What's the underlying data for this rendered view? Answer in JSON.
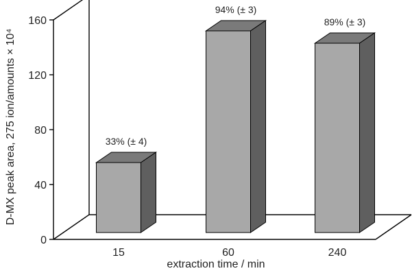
{
  "chart_data": {
    "type": "bar",
    "title": "",
    "xlabel": "extraction time / min",
    "ylabel": "D-MX peak area, 275 ion/amounts × 10⁴",
    "ylim": [
      0,
      160
    ],
    "yticks": [
      "0",
      "40",
      "80",
      "120",
      "160"
    ],
    "categories": [
      "15",
      "60",
      "240"
    ],
    "values": [
      56,
      152,
      143
    ],
    "data_labels": [
      "33% (± 4)",
      "94% (± 3)",
      "89% (± 3)"
    ],
    "grid": false,
    "legend": "none",
    "style": "3d-bar"
  },
  "colors": {
    "bar_front": "#a8a8a8",
    "bar_top": "#7a7a7a",
    "bar_side": "#5f5f5f",
    "axis": "#000000",
    "text": "#1f1f1f"
  }
}
